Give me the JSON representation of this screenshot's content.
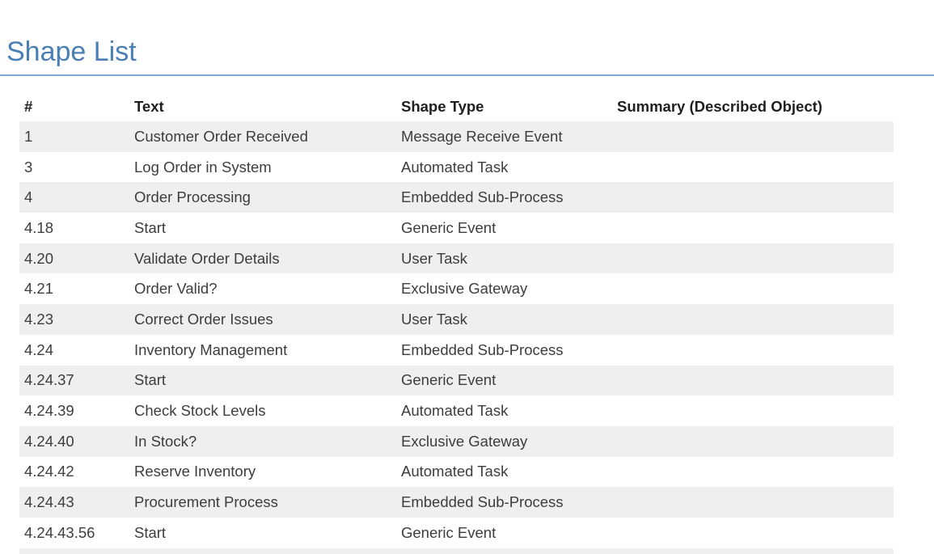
{
  "page": {
    "title": "Shape List"
  },
  "colors": {
    "title_blue": "#4a7fb5",
    "rule_blue": "#7da9d4",
    "stripe_gray": "#efefef",
    "header_text": "#1f1f1f",
    "body_text": "#3d3d3d"
  },
  "table": {
    "headers": {
      "num": "#",
      "text": "Text",
      "shape_type": "Shape Type",
      "summary": "Summary (Described Object)"
    },
    "rows": [
      {
        "num": "1",
        "text": "Customer Order Received",
        "shape_type": "Message Receive Event",
        "summary": ""
      },
      {
        "num": "3",
        "text": "Log Order in System",
        "shape_type": "Automated Task",
        "summary": ""
      },
      {
        "num": "4",
        "text": "Order Processing",
        "shape_type": "Embedded Sub-Process",
        "summary": ""
      },
      {
        "num": "4.18",
        "text": "Start",
        "shape_type": "Generic Event",
        "summary": ""
      },
      {
        "num": "4.20",
        "text": "Validate Order Details",
        "shape_type": "User Task",
        "summary": ""
      },
      {
        "num": "4.21",
        "text": "Order Valid?",
        "shape_type": "Exclusive Gateway",
        "summary": ""
      },
      {
        "num": "4.23",
        "text": "Correct Order Issues",
        "shape_type": "User Task",
        "summary": ""
      },
      {
        "num": "4.24",
        "text": "Inventory Management",
        "shape_type": "Embedded Sub-Process",
        "summary": ""
      },
      {
        "num": "4.24.37",
        "text": "Start",
        "shape_type": "Generic Event",
        "summary": ""
      },
      {
        "num": "4.24.39",
        "text": "Check Stock Levels",
        "shape_type": "Automated Task",
        "summary": ""
      },
      {
        "num": "4.24.40",
        "text": "In Stock?",
        "shape_type": "Exclusive Gateway",
        "summary": ""
      },
      {
        "num": "4.24.42",
        "text": "Reserve Inventory",
        "shape_type": "Automated Task",
        "summary": ""
      },
      {
        "num": "4.24.43",
        "text": "Procurement Process",
        "shape_type": "Embedded Sub-Process",
        "summary": ""
      },
      {
        "num": "4.24.43.56",
        "text": "Start",
        "shape_type": "Generic Event",
        "summary": ""
      }
    ],
    "partial_row_at_bottom": true
  }
}
